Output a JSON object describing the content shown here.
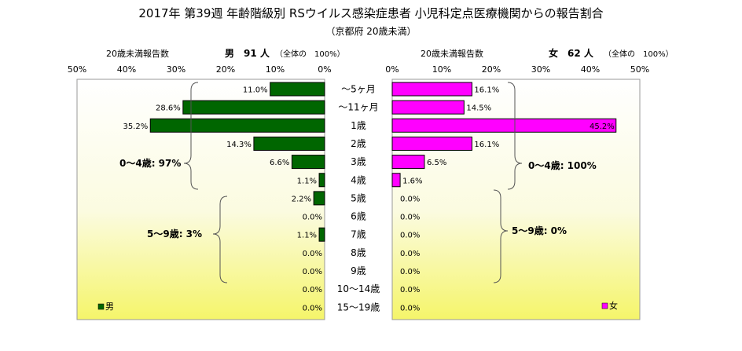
{
  "chart_data": {
    "type": "bar",
    "title": "2017年 第39週 年齢階級別 RSウイルス感染症患者 小児科定点医療機関からの報告割合",
    "subtitle": "（京都府 20歳未満）",
    "categories": [
      "～5ヶ月",
      "～11ヶ月",
      "1歳",
      "2歳",
      "3歳",
      "4歳",
      "5歳",
      "6歳",
      "7歳",
      "8歳",
      "9歳",
      "10～14歳",
      "15～19歳"
    ],
    "axis_ticks": [
      "50%",
      "40%",
      "30%",
      "20%",
      "10%",
      "0%",
      "0%",
      "10%",
      "20%",
      "30%",
      "40%",
      "50%"
    ],
    "xlim": [
      0,
      50
    ],
    "grid": false,
    "series": [
      {
        "name": "男",
        "color": "#006600",
        "values": [
          11.0,
          28.6,
          35.2,
          14.3,
          6.6,
          1.1,
          2.2,
          0.0,
          1.1,
          0.0,
          0.0,
          0.0,
          0.0
        ],
        "labels": [
          "11.0%",
          "28.6%",
          "35.2%",
          "14.3%",
          "6.6%",
          "1.1%",
          "2.2%",
          "0.0%",
          "1.1%",
          "0.0%",
          "0.0%",
          "0.0%",
          "0.0%"
        ],
        "header_label": "20歳未満報告数",
        "header_title": "男　91 人",
        "header_note": "（全体の　100%）",
        "group_labels": [
          "0～4歳: 97%",
          "5～9歳: 3%"
        ],
        "legend_label": "男"
      },
      {
        "name": "女",
        "color": "#ff00ff",
        "values": [
          16.1,
          14.5,
          45.2,
          16.1,
          6.5,
          1.6,
          0.0,
          0.0,
          0.0,
          0.0,
          0.0,
          0.0,
          0.0
        ],
        "labels": [
          "16.1%",
          "14.5%",
          "45.2%",
          "16.1%",
          "6.5%",
          "1.6%",
          "0.0%",
          "0.0%",
          "0.0%",
          "0.0%",
          "0.0%",
          "0.0%",
          "0.0%"
        ],
        "header_label": "20歳未満報告数",
        "header_title": "女　62 人",
        "header_note": "（全体の　100%）",
        "group_labels": [
          "0～4歳: 100%",
          "5～9歳: 0%"
        ],
        "legend_label": "女"
      }
    ],
    "legend_placement": "bottom-left (男), bottom-right (女)"
  }
}
